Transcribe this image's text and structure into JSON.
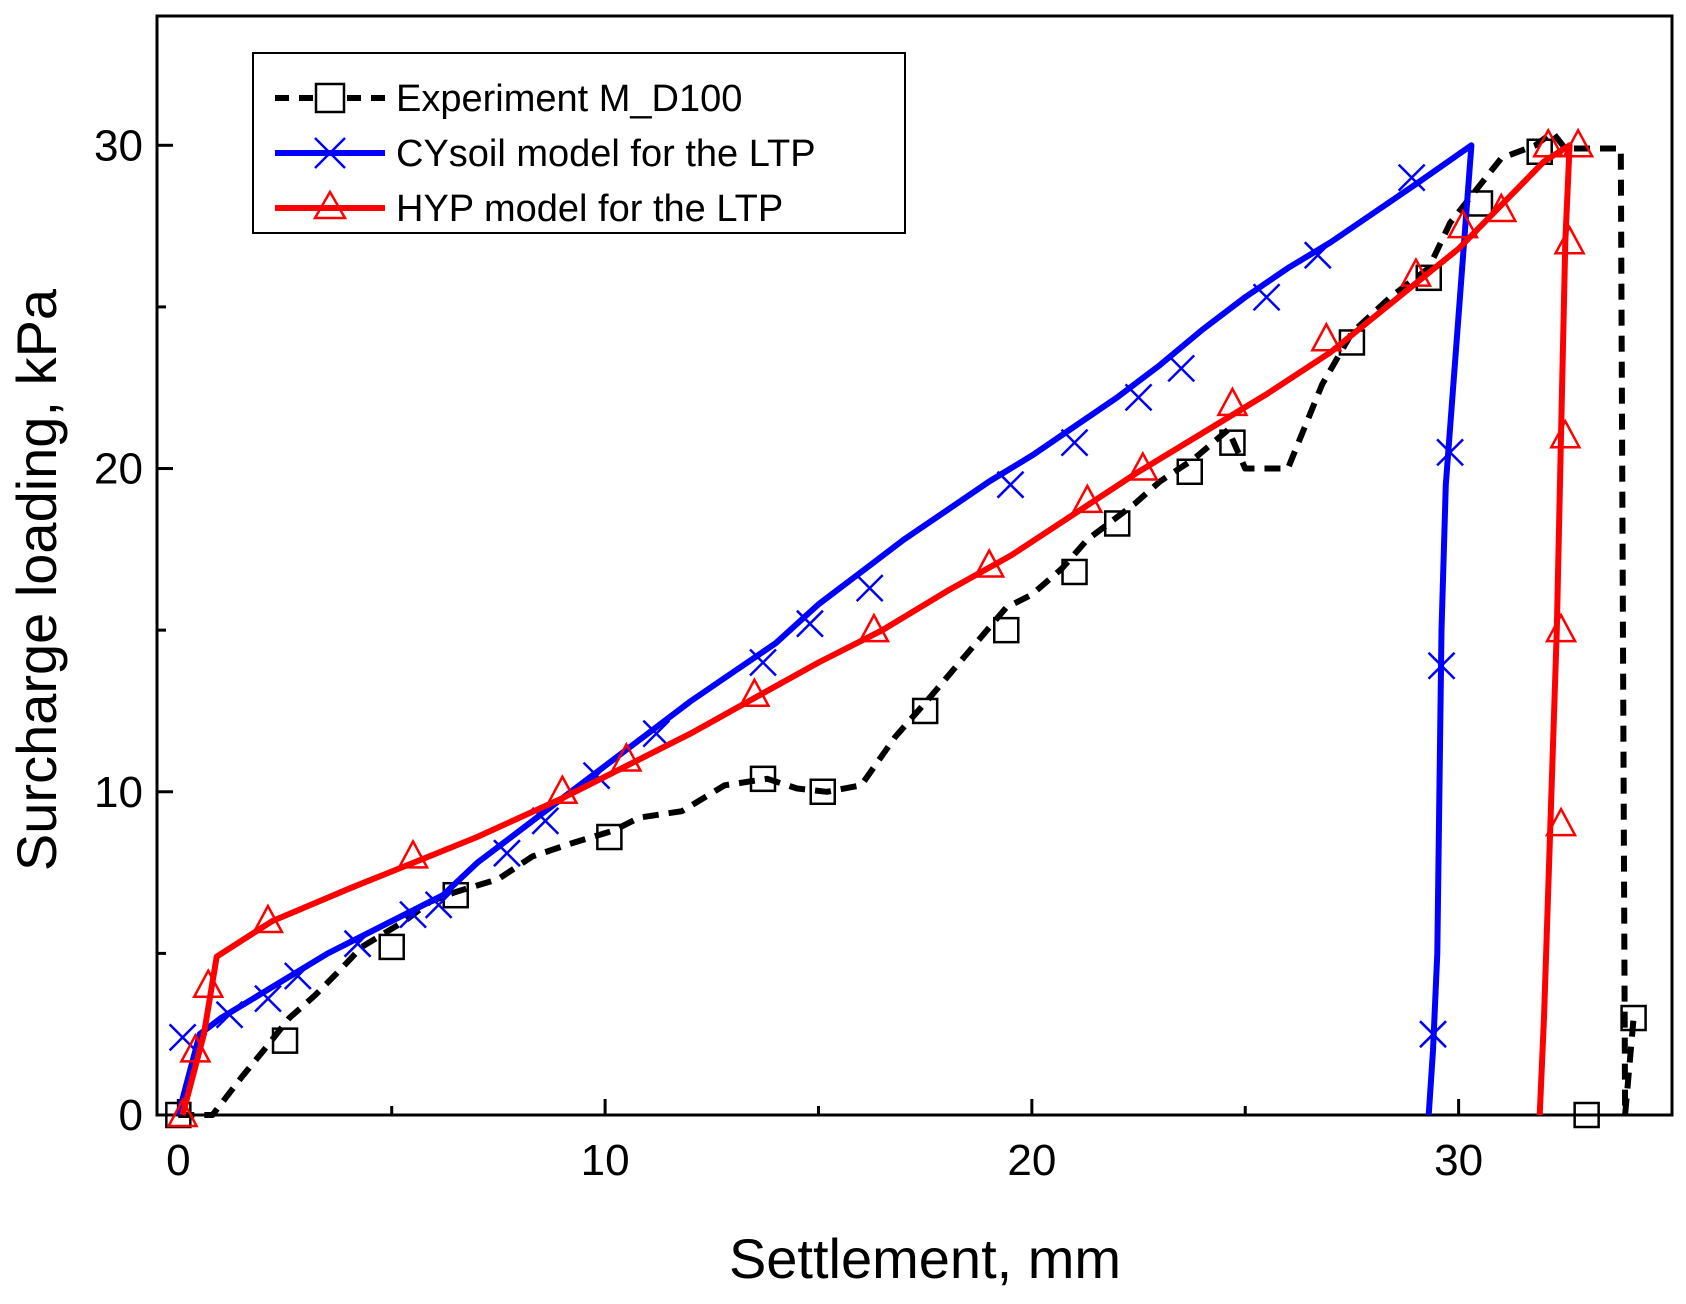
{
  "chart_data": {
    "type": "line",
    "title": "",
    "xlabel": "Settlement, mm",
    "ylabel": "Surcharge loading, kPa",
    "xlim": [
      -0.5,
      35.0
    ],
    "ylim": [
      0,
      34
    ],
    "x_ticks": [
      0,
      10,
      20,
      30
    ],
    "y_ticks": [
      0,
      10,
      20,
      30
    ],
    "x_tick_labels": [
      "0",
      "10",
      "20",
      "30"
    ],
    "y_tick_labels": [
      "0",
      "10",
      "20",
      "30"
    ],
    "grid": false,
    "legend_position": "top-left",
    "series": [
      {
        "name": "Experiment M_D100",
        "color": "#000000",
        "line_style": "dashed",
        "marker": "square",
        "x": [
          0.0,
          0.8,
          1.5,
          2.0,
          2.6,
          3.2,
          3.8,
          4.3,
          4.8,
          5.3,
          5.9,
          6.5,
          7.5,
          8.3,
          9.2,
          10.2,
          10.8,
          11.8,
          12.8,
          13.8,
          14.5,
          15.2,
          16.0,
          16.8,
          17.6,
          18.5,
          19.4,
          20.0,
          20.7,
          21.3,
          21.8,
          22.4,
          23.0,
          23.8,
          24.6,
          25.0,
          25.6,
          26.0,
          26.8,
          27.5,
          28.4,
          29.3,
          29.8,
          30.4,
          31.0,
          31.8,
          32.2,
          32.5,
          33.0,
          33.5,
          33.8,
          33.9,
          34.1
        ],
        "y": [
          0.0,
          0.0,
          1.2,
          2.0,
          3.0,
          3.7,
          4.5,
          5.2,
          5.6,
          6.0,
          6.6,
          6.9,
          7.3,
          8.0,
          8.4,
          8.8,
          9.2,
          9.4,
          10.2,
          10.4,
          10.1,
          10.0,
          10.2,
          11.7,
          12.9,
          14.3,
          15.7,
          16.1,
          16.9,
          17.8,
          18.3,
          18.9,
          19.6,
          20.3,
          21.2,
          20.0,
          20.0,
          20.0,
          22.6,
          24.2,
          25.3,
          26.2,
          27.6,
          28.6,
          29.6,
          30.0,
          30.4,
          29.9,
          29.9,
          29.9,
          29.9,
          0.0,
          3.0
        ],
        "marker_x": [
          0.0,
          2.5,
          5.0,
          6.5,
          10.1,
          13.7,
          15.1,
          17.5,
          19.4,
          21.0,
          22.0,
          23.7,
          24.7,
          27.5,
          29.3,
          30.5,
          31.9,
          33.0,
          34.1
        ],
        "marker_y": [
          0.0,
          2.3,
          5.2,
          6.8,
          8.6,
          10.4,
          10.0,
          12.5,
          15.0,
          16.8,
          18.3,
          19.9,
          20.8,
          23.9,
          25.9,
          28.2,
          29.8,
          0.0,
          3.0
        ]
      },
      {
        "name": "CYsoil model for the LTP",
        "color": "#0000ff",
        "line_style": "solid",
        "marker": "x",
        "x": [
          0.0,
          0.5,
          1.0,
          2.0,
          3.5,
          5.0,
          6.2,
          7.0,
          8.0,
          9.0,
          10.0,
          11.0,
          12.0,
          13.0,
          14.0,
          15.0,
          16.0,
          17.0,
          18.0,
          19.0,
          20.0,
          21.0,
          22.0,
          23.0,
          24.0,
          25.0,
          26.0,
          27.0,
          28.0,
          29.0,
          30.3,
          29.7,
          29.6,
          29.5,
          29.4,
          29.3
        ],
        "y": [
          0.0,
          2.5,
          3.0,
          3.8,
          5.0,
          6.0,
          6.8,
          7.8,
          8.8,
          9.8,
          10.8,
          11.8,
          12.8,
          13.7,
          14.6,
          15.8,
          16.8,
          17.8,
          18.7,
          19.6,
          20.4,
          21.3,
          22.2,
          23.2,
          24.3,
          25.3,
          26.2,
          27.0,
          27.9,
          28.8,
          30.0,
          19.5,
          15.0,
          5.0,
          2.0,
          0.0
        ],
        "marker_x": [
          0.1,
          1.2,
          2.1,
          2.8,
          4.2,
          5.5,
          6.1,
          7.7,
          8.6,
          9.8,
          11.2,
          13.7,
          14.8,
          16.2,
          19.5,
          21.0,
          22.5,
          23.5,
          25.5,
          26.7,
          28.9,
          29.8,
          29.6,
          29.4
        ],
        "marker_y": [
          2.4,
          3.1,
          3.6,
          4.3,
          5.3,
          6.2,
          6.5,
          8.1,
          9.1,
          10.5,
          11.8,
          14.0,
          15.2,
          16.3,
          19.5,
          20.8,
          22.2,
          23.1,
          25.3,
          26.6,
          29.0,
          20.5,
          13.9,
          2.5
        ],
        "smooth": false
      },
      {
        "name": "HYP model for the LTP",
        "color": "#ff0000",
        "line_style": "solid",
        "marker": "triangle",
        "x": [
          0.1,
          0.6,
          0.9,
          2.2,
          4.0,
          5.5,
          7.0,
          9.0,
          10.5,
          12.0,
          13.5,
          15.0,
          16.5,
          18.0,
          19.5,
          21.0,
          22.5,
          24.0,
          25.5,
          27.0,
          28.5,
          30.0,
          32.0,
          32.6,
          32.5,
          32.4,
          32.3,
          32.0,
          31.9
        ],
        "y": [
          0.0,
          2.5,
          4.9,
          6.0,
          7.0,
          7.8,
          8.6,
          9.8,
          10.8,
          11.8,
          12.9,
          14.0,
          15.0,
          16.2,
          17.3,
          18.6,
          19.9,
          21.1,
          22.3,
          23.6,
          25.2,
          26.8,
          29.5,
          30.0,
          27.0,
          21.0,
          15.0,
          3.0,
          0.0
        ],
        "marker_x": [
          0.1,
          0.4,
          0.7,
          2.1,
          5.5,
          9.0,
          10.5,
          13.5,
          16.3,
          19.0,
          21.3,
          22.6,
          24.7,
          26.9,
          29.0,
          30.1,
          31.0,
          32.1,
          32.4,
          32.4,
          32.5,
          32.6,
          32.8
        ],
        "marker_y": [
          0.0,
          2.0,
          4.0,
          6.0,
          8.0,
          10.0,
          11.0,
          13.0,
          15.0,
          17.0,
          19.0,
          20.0,
          22.0,
          24.0,
          26.0,
          27.5,
          28.0,
          30.0,
          9.0,
          15.0,
          21.0,
          27.0,
          30.0
        ],
        "smooth": false
      }
    ]
  }
}
